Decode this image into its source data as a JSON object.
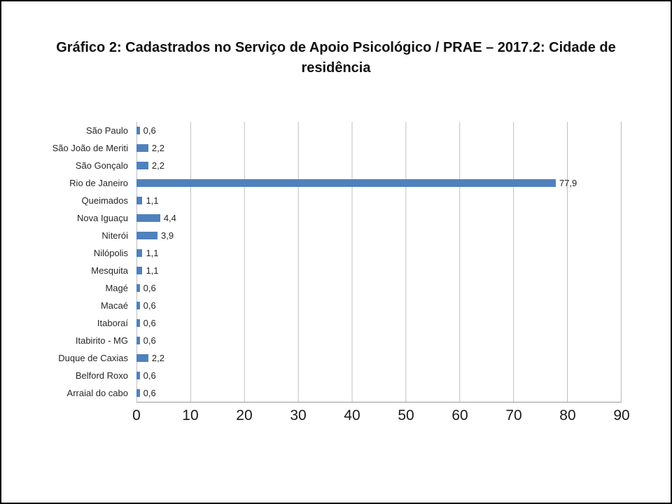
{
  "title": "Gráfico 2: Cadastrados no Serviço de Apoio Psicológico / PRAE – 2017.2: Cidade de residência",
  "chart_data": {
    "type": "bar",
    "orientation": "horizontal",
    "title": "Gráfico 2: Cadastrados no Serviço de Apoio Psicológico / PRAE – 2017.2: Cidade de residência",
    "categories": [
      "São Paulo",
      "São João de Meriti",
      "São Gonçalo",
      "Rio de Janeiro",
      "Queimados",
      "Nova Iguaçu",
      "Niterói",
      "Nilópolis",
      "Mesquita",
      "Magé",
      "Macaé",
      "Itaboraí",
      "Itabirito - MG",
      "Duque de Caxias",
      "Belford Roxo",
      "Arraial do cabo"
    ],
    "values": [
      0.6,
      2.2,
      2.2,
      77.9,
      1.1,
      4.4,
      3.9,
      1.1,
      1.1,
      0.6,
      0.6,
      0.6,
      0.6,
      2.2,
      0.6,
      0.6
    ],
    "value_labels": [
      "0,6",
      "2,2",
      "2,2",
      "77,9",
      "1,1",
      "4,4",
      "3,9",
      "1,1",
      "1,1",
      "0,6",
      "0,6",
      "0,6",
      "0,6",
      "2,2",
      "0,6",
      "0,6"
    ],
    "xlim": [
      0,
      90
    ],
    "x_ticks": [
      "0",
      "10",
      "20",
      "30",
      "40",
      "50",
      "60",
      "70",
      "80",
      "90"
    ],
    "xlabel": "",
    "ylabel": "",
    "bar_color": "#4F81BD",
    "gridline_color": "#BFBFBF",
    "grid": true,
    "legend": false
  }
}
